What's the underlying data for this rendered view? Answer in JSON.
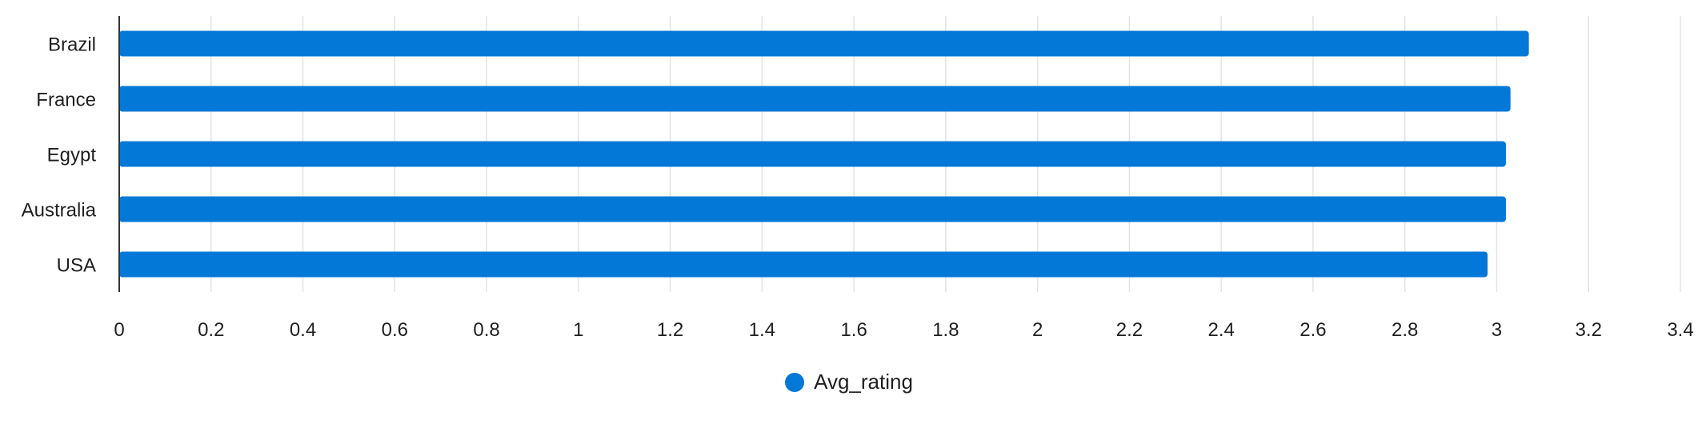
{
  "chart_data": {
    "type": "bar",
    "orientation": "horizontal",
    "categories": [
      "Brazil",
      "France",
      "Egypt",
      "Australia",
      "USA"
    ],
    "series": [
      {
        "name": "Avg_rating",
        "values": [
          3.07,
          3.03,
          3.02,
          3.02,
          2.98
        ],
        "color": "#0478d7"
      }
    ],
    "xlim": [
      0,
      3.4
    ],
    "x_ticks": [
      "0",
      "0.2",
      "0.4",
      "0.6",
      "0.8",
      "1",
      "1.2",
      "1.4",
      "1.6",
      "1.8",
      "2",
      "2.2",
      "2.4",
      "2.6",
      "2.8",
      "3",
      "3.2",
      "3.4"
    ],
    "grid": true,
    "legend_position": "bottom-center",
    "title": "",
    "xlabel": "",
    "ylabel": ""
  }
}
